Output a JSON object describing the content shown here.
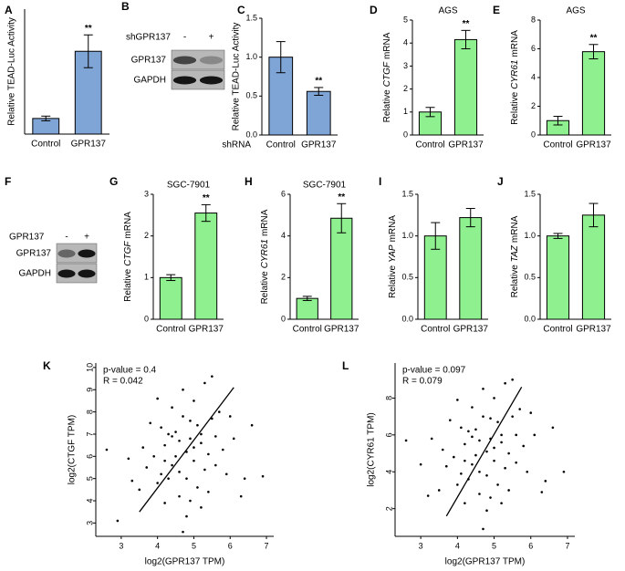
{
  "chart_data": [
    {
      "type": "bar",
      "panel": "A",
      "ylabel": "Relative TEAD-Luc Activity",
      "categories": [
        "Control",
        "GPR137"
      ],
      "values": [
        1.0,
        5.3
      ],
      "errors": [
        0.15,
        1.05
      ],
      "significance": [
        null,
        "**"
      ],
      "color": "#7fa4d6",
      "ylim": [
        0,
        8
      ]
    },
    {
      "type": "bar",
      "panel": "C",
      "ylabel": "Relative TEAD-Luc Activity",
      "xlabel": "shRNA",
      "categories": [
        "Control",
        "GPR137"
      ],
      "values": [
        1.0,
        0.56
      ],
      "errors": [
        0.2,
        0.05
      ],
      "significance": [
        null,
        "**"
      ],
      "color": "#7fa4d6",
      "ylim": [
        0,
        1.5
      ],
      "yticks": [
        {
          "value": 0,
          "label": "0.0"
        },
        {
          "value": 0.5,
          "label": "0.5"
        },
        {
          "value": 1,
          "label": "1.0"
        },
        {
          "value": 1.5,
          "label": "1.5"
        }
      ]
    },
    {
      "type": "bar",
      "panel": "D",
      "title": "AGS",
      "ylabel_pre": "Relative",
      "gene": "CTGF",
      "ylabel_post": "mRNA",
      "categories": [
        "Control",
        "GPR137"
      ],
      "values": [
        1.0,
        4.15
      ],
      "errors": [
        0.2,
        0.4
      ],
      "significance": [
        null,
        "**"
      ],
      "color": "#8ff08f",
      "ylim": [
        0,
        5
      ],
      "yticks": [
        0,
        1,
        2,
        3,
        4,
        5
      ]
    },
    {
      "type": "bar",
      "panel": "E",
      "title": "AGS",
      "ylabel_pre": "Relative",
      "gene": "CYR61",
      "ylabel_post": "mRNA",
      "categories": [
        "Control",
        "GPR137"
      ],
      "values": [
        1.0,
        5.8
      ],
      "errors": [
        0.3,
        0.5
      ],
      "significance": [
        null,
        "**"
      ],
      "color": "#8ff08f",
      "ylim": [
        0,
        8
      ],
      "yticks": [
        0,
        2,
        4,
        6,
        8
      ]
    },
    {
      "type": "bar",
      "panel": "G",
      "title": "SGC-7901",
      "ylabel_pre": "Relative",
      "gene": "CTGF",
      "ylabel_post": "mRNA",
      "categories": [
        "Control",
        "GPR137"
      ],
      "values": [
        1.0,
        2.55
      ],
      "errors": [
        0.07,
        0.2
      ],
      "significance": [
        null,
        "**"
      ],
      "color": "#8ff08f",
      "ylim": [
        0,
        3
      ],
      "yticks": [
        0,
        1,
        2,
        3
      ]
    },
    {
      "type": "bar",
      "panel": "H",
      "title": "SGC-7901",
      "ylabel_pre": "Relative",
      "gene": "CYR61",
      "ylabel_post": "mRNA",
      "categories": [
        "Control",
        "GPR137"
      ],
      "values": [
        1.0,
        4.85
      ],
      "errors": [
        0.1,
        0.7
      ],
      "significance": [
        null,
        "**"
      ],
      "color": "#8ff08f",
      "ylim": [
        0,
        6
      ],
      "yticks": [
        0,
        2,
        4,
        6
      ]
    },
    {
      "type": "bar",
      "panel": "I",
      "ylabel_pre": "Relative",
      "gene": "YAP",
      "ylabel_post": "mRNA",
      "categories": [
        "Control",
        "GPR137"
      ],
      "values": [
        1.0,
        1.22
      ],
      "errors": [
        0.16,
        0.11
      ],
      "color": "#8ff08f",
      "ylim": [
        0,
        1.5
      ],
      "yticks": [
        {
          "value": 0,
          "label": "0.0"
        },
        {
          "value": 0.5,
          "label": "0.5"
        },
        {
          "value": 1,
          "label": "1.0"
        },
        {
          "value": 1.5,
          "label": "1.5"
        }
      ]
    },
    {
      "type": "bar",
      "panel": "J",
      "ylabel_pre": "Relative",
      "gene": "TAZ",
      "ylabel_post": "mRNA",
      "categories": [
        "Control",
        "GPR137"
      ],
      "values": [
        1.0,
        1.25
      ],
      "errors": [
        0.03,
        0.14
      ],
      "color": "#8ff08f",
      "ylim": [
        0,
        1.5
      ],
      "yticks": [
        {
          "value": 0,
          "label": "0.0"
        },
        {
          "value": 0.5,
          "label": "0.5"
        },
        {
          "value": 1,
          "label": "1.0"
        },
        {
          "value": 1.5,
          "label": "1.5"
        }
      ]
    },
    {
      "type": "scatter",
      "panel": "K",
      "xlabel": "log2(GPR137 TPM)",
      "ylabel": "log2(CTGF TPM)",
      "annotations": [
        "p-value = 0.4",
        "R = 0.042"
      ],
      "color": "#000000",
      "x": [
        4.2,
        4.5,
        4.8,
        5.0,
        5.2,
        4.6,
        4.9,
        5.4,
        4.3,
        4.7,
        5.1,
        5.6,
        3.9,
        4.4,
        5.3,
        4.0,
        5.8,
        4.6,
        5.0,
        4.1,
        5.5,
        4.8,
        3.7,
        5.9,
        4.5,
        5.2,
        4.3,
        4.9,
        6.1,
        3.5,
        5.7,
        4.7,
        4.2,
        5.3,
        6.4,
        3.2,
        4.6,
        5.1,
        4.4,
        5.4,
        6.6,
        2.6,
        4.0,
        5.6,
        4.8,
        3.8,
        5.0,
        4.2,
        6.0,
        3.3,
        4.7,
        5.5,
        3.6,
        6.3,
        4.9,
        5.2,
        4.1,
        6.9,
        2.9,
        4.4
      ],
      "values": [
        6.5,
        7.1,
        6.2,
        5.8,
        7.0,
        5.3,
        6.8,
        6.1,
        5.0,
        7.8,
        4.6,
        6.9,
        6.0,
        8.2,
        5.4,
        4.8,
        6.3,
        4.2,
        8.5,
        7.3,
        7.7,
        5.0,
        5.5,
        5.2,
        6.0,
        6.6,
        7.0,
        4.0,
        6.8,
        4.5,
        8.0,
        9.0,
        3.9,
        9.3,
        5.0,
        5.9,
        6.7,
        7.4,
        5.6,
        4.4,
        7.4,
        6.3,
        8.6,
        5.6,
        3.3,
        7.5,
        6.4,
        5.8,
        7.8,
        4.9,
        2.6,
        9.6,
        6.4,
        4.2,
        7.6,
        3.7,
        5.2,
        5.1,
        3.1,
        6.9
      ],
      "fit": {
        "x": [
          3.5,
          6.1
        ],
        "y": [
          3.5,
          9.1
        ]
      },
      "xlim": [
        2.3,
        7.2
      ],
      "ylim": [
        2.4,
        10.2
      ],
      "xticks": [
        3,
        4,
        5,
        6,
        7
      ],
      "yticks": [
        3,
        4,
        5,
        6,
        7,
        8,
        9,
        10
      ]
    },
    {
      "type": "scatter",
      "panel": "L",
      "xlabel": "log2(GPR137 TPM)",
      "ylabel": "log2(CYR61 TPM)",
      "annotations": [
        "p-value = 0.097",
        "R = 0.079"
      ],
      "color": "#000000",
      "x": [
        4.2,
        4.5,
        4.8,
        5.0,
        5.2,
        4.6,
        4.9,
        5.4,
        4.3,
        4.7,
        5.1,
        5.6,
        3.9,
        4.4,
        5.3,
        4.0,
        5.8,
        4.6,
        5.0,
        4.1,
        5.5,
        4.8,
        3.7,
        5.9,
        4.5,
        5.2,
        4.3,
        4.9,
        6.1,
        3.5,
        5.7,
        4.7,
        4.2,
        5.3,
        6.4,
        3.3,
        4.6,
        5.1,
        4.4,
        5.4,
        6.6,
        2.6,
        4.0,
        5.6,
        4.8,
        3.8,
        5.0,
        4.2,
        6.0,
        3.2,
        4.7,
        5.5,
        3.6,
        6.3,
        4.9,
        5.2,
        4.1,
        6.9,
        3.0,
        4.4
      ],
      "values": [
        5.5,
        6.3,
        5.1,
        4.6,
        6.0,
        4.0,
        5.8,
        5.0,
        3.6,
        7.0,
        3.3,
        6.0,
        4.8,
        7.5,
        4.2,
        3.3,
        5.4,
        2.8,
        8.0,
        6.4,
        7.0,
        3.8,
        4.3,
        4.0,
        4.9,
        5.6,
        6.2,
        2.6,
        6.0,
        3.0,
        7.4,
        8.5,
        2.3,
        8.8,
        3.5,
        5.8,
        5.7,
        6.7,
        4.4,
        3.0,
        6.4,
        5.7,
        7.9,
        4.5,
        1.9,
        6.8,
        5.3,
        4.6,
        7.2,
        2.7,
        0.9,
        9.0,
        5.2,
        2.9,
        6.9,
        2.3,
        3.9,
        4.0,
        4.4,
        5.9
      ],
      "fit": {
        "x": [
          3.7,
          5.75
        ],
        "y": [
          1.6,
          8.6
        ]
      },
      "xlim": [
        2.3,
        7.2
      ],
      "ylim": [
        0.5,
        9.9
      ],
      "xticks": [
        3,
        4,
        5,
        6,
        7
      ],
      "yticks": [
        2,
        4,
        6,
        8
      ]
    }
  ],
  "blots": [
    {
      "panel": "B",
      "treatment": "shGPR137",
      "lanes": [
        "-",
        "+"
      ],
      "rows": [
        "GPR137",
        "GAPDH"
      ]
    },
    {
      "panel": "F",
      "treatment": "GPR137",
      "lanes": [
        "-",
        "+"
      ],
      "rows": [
        "GPR137",
        "GAPDH"
      ]
    }
  ]
}
